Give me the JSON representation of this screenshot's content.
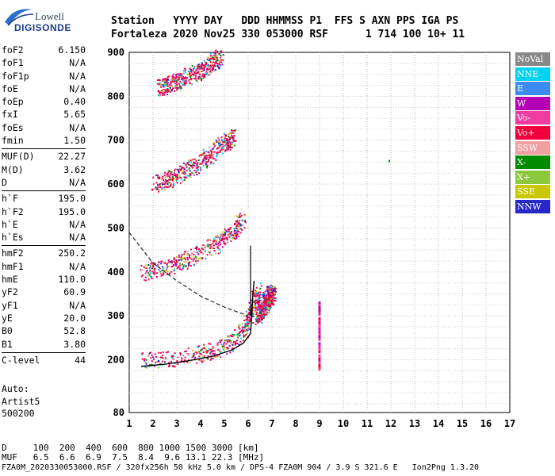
{
  "logo": {
    "line1": "Lowell",
    "line2": "DIGISONDE"
  },
  "header": {
    "row1": "Station   YYYY DAY   DDD HHMMSS P1  FFS S AXN PPS IGA PS",
    "row2": "Fortaleza 2020 Nov25 330 053000 RSF      1 714 100 10+ 11"
  },
  "params": [
    {
      "group": [
        {
          "label": "foF2",
          "value": "6.150"
        },
        {
          "label": "foF1",
          "value": "N/A"
        },
        {
          "label": "foF1p",
          "value": "N/A"
        },
        {
          "label": "foE",
          "value": "N/A"
        },
        {
          "label": "foEp",
          "value": "0.40"
        },
        {
          "label": "fxI",
          "value": "5.65"
        },
        {
          "label": "foEs",
          "value": "N/A"
        },
        {
          "label": "fmin",
          "value": "1.50"
        }
      ]
    },
    {
      "group": [
        {
          "label": "MUF(D)",
          "value": "22.27"
        },
        {
          "label": "M(D)",
          "value": "3.62"
        },
        {
          "label": "D",
          "value": "N/A"
        }
      ]
    },
    {
      "group": [
        {
          "label": "h`F",
          "value": "195.0"
        },
        {
          "label": "h`F2",
          "value": "195.0"
        },
        {
          "label": "h`E",
          "value": "N/A"
        },
        {
          "label": "h`Es",
          "value": "N/A"
        }
      ]
    },
    {
      "group": [
        {
          "label": "hmF2",
          "value": "250.2"
        },
        {
          "label": "hmF1",
          "value": "N/A"
        },
        {
          "label": "hmE",
          "value": "110.0"
        },
        {
          "label": "yF2",
          "value": "60.9"
        },
        {
          "label": "yF1",
          "value": "N/A"
        },
        {
          "label": "yE",
          "value": "20.0"
        },
        {
          "label": "B0",
          "value": "52.8"
        },
        {
          "label": "B1",
          "value": "3.80"
        }
      ]
    },
    {
      "group": [
        {
          "label": "C-level",
          "value": "44"
        }
      ]
    }
  ],
  "auto": {
    "line1": "Auto:",
    "line2": "Artist5",
    "line3": "500200"
  },
  "legend": [
    {
      "label": "NoVal",
      "color": "#888888"
    },
    {
      "label": "NNE",
      "color": "#00d2f0"
    },
    {
      "label": "E",
      "color": "#3c8cf0"
    },
    {
      "label": "W",
      "color": "#b400b4"
    },
    {
      "label": "Vo-",
      "color": "#f03ca0"
    },
    {
      "label": "Vo+",
      "color": "#f0003c"
    },
    {
      "label": "SSW",
      "color": "#f0a0a0"
    },
    {
      "label": "X-",
      "color": "#008c00"
    },
    {
      "label": "X+",
      "color": "#8cc83c"
    },
    {
      "label": "SSE",
      "color": "#c8c800"
    },
    {
      "label": "NNW",
      "color": "#2828c8"
    }
  ],
  "footer": {
    "d_line": "D     100  200  400  600  800 1000 1500 3000 [km]",
    "muf_line": "MUF   6.5  6.6  6.9  7.5  8.4  9.6 13.1 22.3 [MHz]",
    "info_line": "FZA0M_2020330053000.RSF / 320fx256h 50 kHz 5.0 km / DPS-4 FZA0M 904 / 3.9 S 321.6 E   Ion2Png 1.3.20"
  },
  "chart_data": {
    "type": "scatter",
    "xlim": [
      1,
      17
    ],
    "ylim": [
      80,
      900
    ],
    "xticks": [
      1,
      2,
      3,
      4,
      5,
      6,
      7,
      8,
      9,
      10,
      11,
      12,
      13,
      14,
      15,
      16,
      17
    ],
    "ytick_labels": [
      "900",
      "800",
      "700",
      "600",
      "500",
      "400",
      "300",
      "200",
      "80"
    ],
    "grid": true,
    "legend_position": "right",
    "traces": [
      {
        "name": "trace-o-f2",
        "points": [
          [
            1.5,
            198
          ],
          [
            2.5,
            203
          ],
          [
            3.5,
            210
          ],
          [
            4.5,
            222
          ],
          [
            5.2,
            238
          ],
          [
            5.7,
            262
          ],
          [
            6.0,
            292
          ],
          [
            6.2,
            325
          ],
          [
            6.4,
            360
          ]
        ]
      },
      {
        "name": "trace-2hop",
        "points": [
          [
            1.5,
            400
          ],
          [
            2.5,
            412
          ],
          [
            3.5,
            432
          ],
          [
            4.5,
            460
          ],
          [
            5.3,
            490
          ],
          [
            5.8,
            520
          ]
        ]
      },
      {
        "name": "trace-3hop",
        "points": [
          [
            2.0,
            600
          ],
          [
            3.0,
            620
          ],
          [
            4.0,
            650
          ],
          [
            4.8,
            685
          ],
          [
            5.4,
            710
          ]
        ]
      },
      {
        "name": "trace-4hop",
        "points": [
          [
            2.3,
            820
          ],
          [
            3.0,
            835
          ],
          [
            4.0,
            860
          ],
          [
            4.8,
            890
          ]
        ]
      },
      {
        "name": "trace-x-f2",
        "points": [
          [
            6.4,
            300
          ],
          [
            6.7,
            330
          ],
          [
            7.0,
            355
          ]
        ]
      },
      {
        "name": "trace-9mhz",
        "points": [
          [
            8.95,
            180
          ],
          [
            8.95,
            215
          ],
          [
            8.95,
            250
          ],
          [
            8.95,
            300
          ],
          [
            8.95,
            340
          ]
        ]
      }
    ],
    "profile_curve": [
      [
        1.5,
        185
      ],
      [
        2.5,
        190
      ],
      [
        3.5,
        198
      ],
      [
        4.5,
        208
      ],
      [
        5.3,
        222
      ],
      [
        5.8,
        238
      ],
      [
        6.1,
        260
      ],
      [
        6.15,
        300
      ],
      [
        6.2,
        350
      ],
      [
        6.25,
        380
      ]
    ],
    "dashed_curve": [
      [
        1.0,
        490
      ],
      [
        2.0,
        420
      ],
      [
        3.0,
        380
      ],
      [
        4.0,
        345
      ],
      [
        5.0,
        320
      ],
      [
        6.0,
        300
      ]
    ]
  }
}
